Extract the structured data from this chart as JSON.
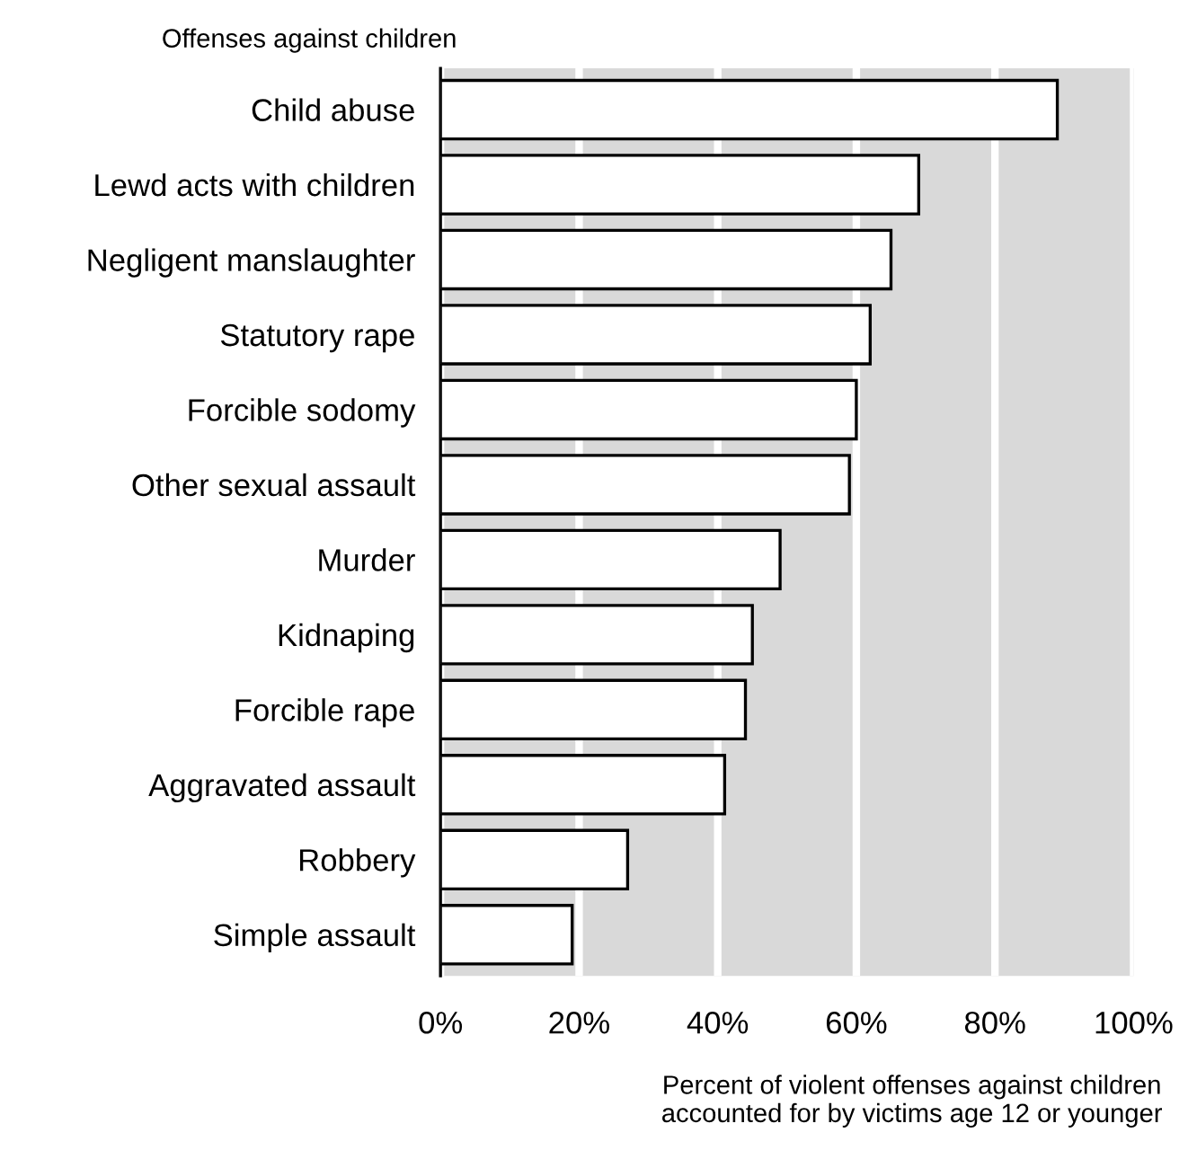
{
  "chart_data": {
    "type": "bar",
    "orientation": "horizontal",
    "ylabel": "Offenses against children",
    "xlabel": "Percent of violent offenses against children\naccounted for by victims age 12 or younger",
    "categories": [
      "Child abuse",
      "Lewd acts with children",
      "Negligent manslaughter",
      "Statutory rape",
      "Forcible sodomy",
      "Other sexual assault",
      "Murder",
      "Kidnaping",
      "Forcible rape",
      "Aggravated assault",
      "Robbery",
      "Simple assault"
    ],
    "values": [
      89,
      69,
      65,
      62,
      60,
      59,
      49,
      45,
      44,
      41,
      27,
      19
    ],
    "color": "#ffffff",
    "xlim": [
      0,
      100
    ],
    "xticks": [
      {
        "value": 0,
        "label": "0%"
      },
      {
        "value": 20,
        "label": "20%"
      },
      {
        "value": 40,
        "label": "40%"
      },
      {
        "value": 60,
        "label": "60%"
      },
      {
        "value": 80,
        "label": "80%"
      },
      {
        "value": 100,
        "label": "100%"
      }
    ],
    "grid": "x"
  }
}
